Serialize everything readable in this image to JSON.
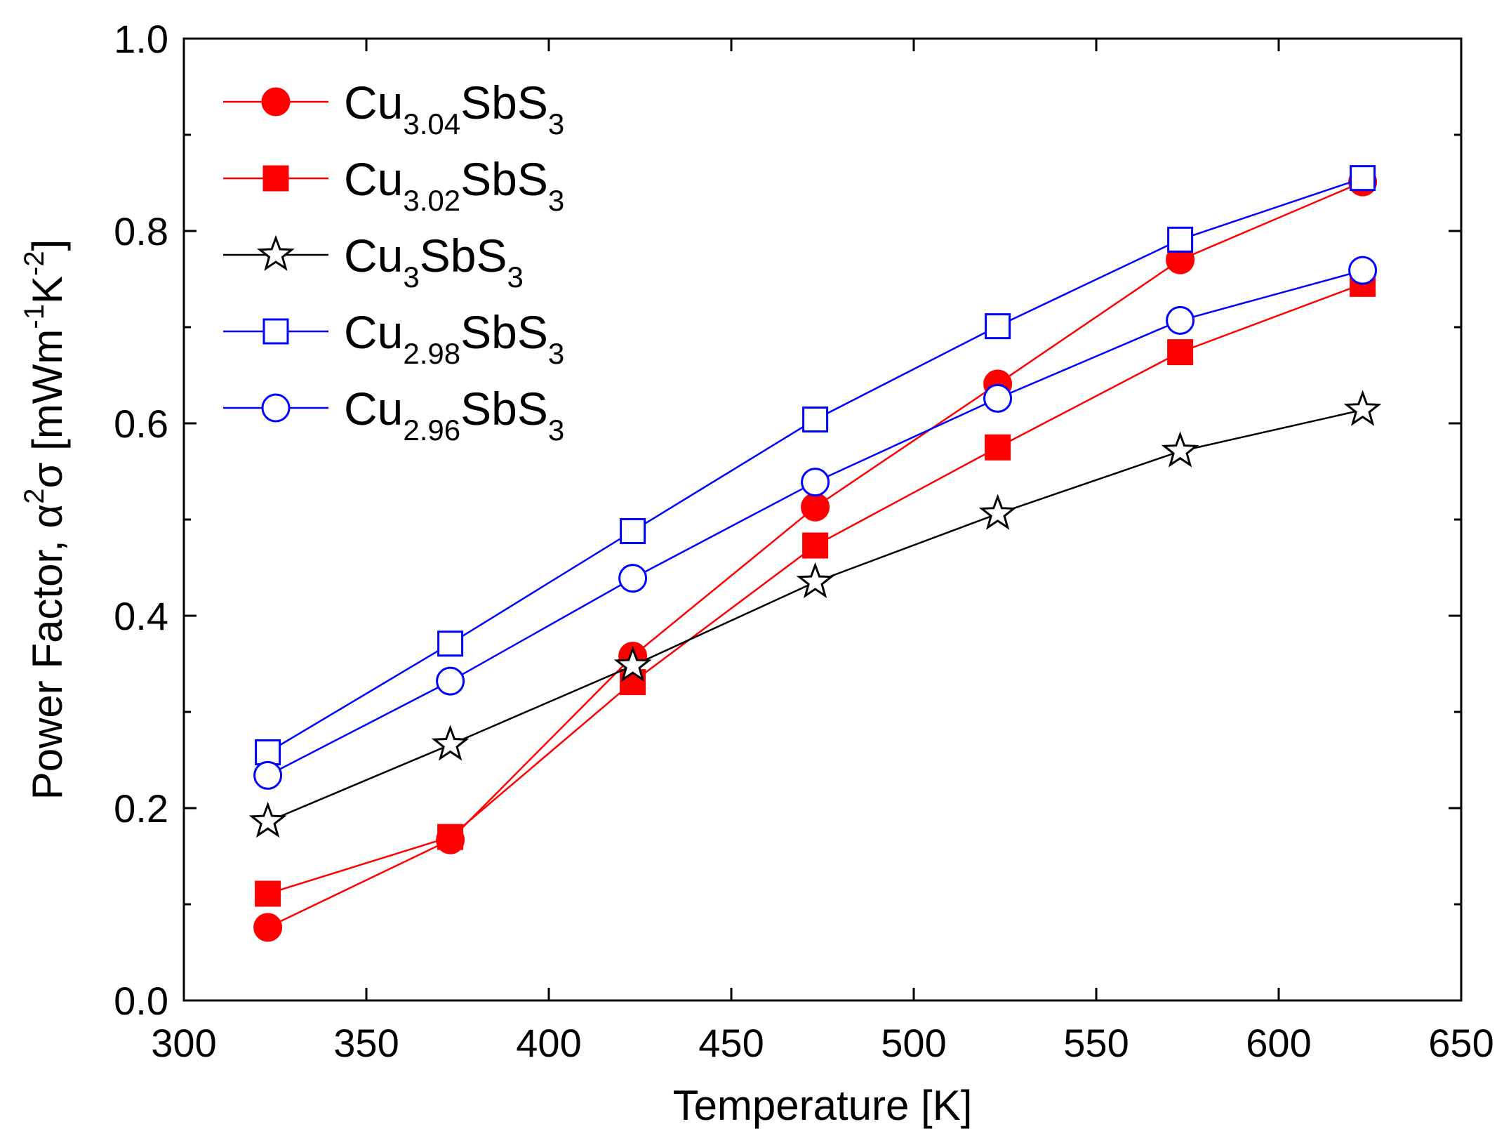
{
  "chart_data": {
    "type": "line",
    "xlabel": "Temperature [K]",
    "ylabel": {
      "prefix": "Power Factor, ",
      "alpha": "α",
      "alpha_exp": "2",
      "sigma": "σ",
      "units_open": " [mWm",
      "m_exp": "-1",
      "k": "K",
      "k_exp": "-2",
      "units_close": "]"
    },
    "xlim": [
      300,
      650
    ],
    "ylim": [
      0.0,
      1.0
    ],
    "xticks": [
      300,
      350,
      400,
      450,
      500,
      550,
      600,
      650
    ],
    "xtick_labels": [
      "300",
      "350",
      "400",
      "450",
      "500",
      "550",
      "600",
      "650"
    ],
    "yticks": [
      0.0,
      0.2,
      0.4,
      0.6,
      0.8,
      1.0
    ],
    "ytick_labels": [
      "0.0",
      "0.2",
      "0.4",
      "0.6",
      "0.8",
      "1.0"
    ],
    "legend_position": "top-left",
    "x": [
      323,
      373,
      423,
      473,
      523,
      573,
      623
    ],
    "series": [
      {
        "key": "cu304",
        "label_main": "Cu",
        "label_sub": "3.04",
        "label_mid": "SbS",
        "label_sub2": "3",
        "color": "#ff0000",
        "marker": "circle",
        "filled": true,
        "values": [
          0.076,
          0.167,
          0.358,
          0.513,
          0.641,
          0.77,
          0.851
        ]
      },
      {
        "key": "cu302",
        "label_main": "Cu",
        "label_sub": "3.02",
        "label_mid": "SbS",
        "label_sub2": "3",
        "color": "#ff0000",
        "marker": "square",
        "filled": true,
        "values": [
          0.111,
          0.17,
          0.331,
          0.473,
          0.575,
          0.674,
          0.745
        ]
      },
      {
        "key": "cu300",
        "label_main": "Cu",
        "label_sub": "3",
        "label_mid": "SbS",
        "label_sub2": "3",
        "color": "#000000",
        "marker": "star",
        "filled": false,
        "values": [
          0.186,
          0.266,
          0.348,
          0.435,
          0.506,
          0.571,
          0.614
        ]
      },
      {
        "key": "cu298",
        "label_main": "Cu",
        "label_sub": "2.98",
        "label_mid": "SbS",
        "label_sub2": "3",
        "color": "#0000ff",
        "marker": "square",
        "filled": false,
        "values": [
          0.258,
          0.371,
          0.488,
          0.604,
          0.701,
          0.791,
          0.855
        ]
      },
      {
        "key": "cu296",
        "label_main": "Cu",
        "label_sub": "2.96",
        "label_mid": "SbS",
        "label_sub2": "3",
        "color": "#0000ff",
        "marker": "circle",
        "filled": false,
        "values": [
          0.234,
          0.332,
          0.439,
          0.539,
          0.626,
          0.707,
          0.759
        ]
      }
    ]
  }
}
